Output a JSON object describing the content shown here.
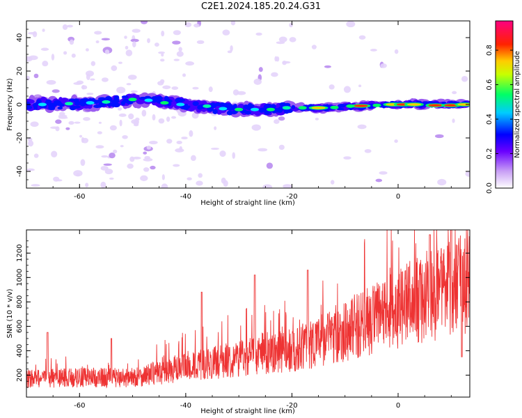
{
  "figure": {
    "title": "C2E1.2024.185.20.24.G31"
  },
  "chart_data": [
    {
      "type": "heatmap",
      "title": "",
      "xlabel": "Height of straight line (km)",
      "ylabel": "Frequency (Hz)",
      "xlim": [
        -70,
        13.5
      ],
      "ylim": [
        -50,
        50
      ],
      "xticks": [
        -60,
        -40,
        -20,
        0
      ],
      "yticks": [
        -40,
        -20,
        0,
        20,
        40
      ],
      "colorbar": {
        "label": "Normalized spectral amplitude",
        "range": [
          0,
          0.97
        ],
        "ticks": [
          0.0,
          0.2,
          0.4,
          0.6,
          0.8
        ],
        "colormap": [
          "#ffffff",
          "#8a2be2",
          "#0000ff",
          "#00ffff",
          "#00ff00",
          "#ffff00",
          "#ff0000",
          "#ff0080"
        ]
      },
      "ridge": [
        {
          "x": -70,
          "f": 0
        },
        {
          "x": -60,
          "f": 0.5
        },
        {
          "x": -50,
          "f": 2.5
        },
        {
          "x": -45,
          "f": 2
        },
        {
          "x": -40,
          "f": 0
        },
        {
          "x": -35,
          "f": -2
        },
        {
          "x": -30,
          "f": -3
        },
        {
          "x": -25,
          "f": -3
        },
        {
          "x": -20,
          "f": -2
        },
        {
          "x": -15,
          "f": -2
        },
        {
          "x": -10,
          "f": -1.5
        },
        {
          "x": -5,
          "f": -0.5
        },
        {
          "x": 0,
          "f": 0
        },
        {
          "x": 5,
          "f": 0
        },
        {
          "x": 10,
          "f": 0
        },
        {
          "x": 13,
          "f": 0
        }
      ]
    },
    {
      "type": "line",
      "title": "",
      "xlabel": "Height of straight line (km)",
      "ylabel": "SNR (10 * v/v)",
      "xlim": [
        -70,
        13.5
      ],
      "ylim": [
        20,
        1390
      ],
      "xticks": [
        -60,
        -40,
        -20,
        0
      ],
      "yticks": [
        200,
        400,
        600,
        800,
        1000,
        1200
      ],
      "color": "#ee3333",
      "trend": [
        {
          "x": -70,
          "y": 170
        },
        {
          "x": -60,
          "y": 180
        },
        {
          "x": -50,
          "y": 180
        },
        {
          "x": -45,
          "y": 220
        },
        {
          "x": -40,
          "y": 260
        },
        {
          "x": -35,
          "y": 300
        },
        {
          "x": -30,
          "y": 340
        },
        {
          "x": -25,
          "y": 380
        },
        {
          "x": -20,
          "y": 400
        },
        {
          "x": -15,
          "y": 480
        },
        {
          "x": -10,
          "y": 560
        },
        {
          "x": -5,
          "y": 650
        },
        {
          "x": 0,
          "y": 740
        },
        {
          "x": 5,
          "y": 840
        },
        {
          "x": 10,
          "y": 900
        },
        {
          "x": 13.5,
          "y": 1000
        }
      ],
      "spikes": [
        {
          "x": -66,
          "y": 550
        },
        {
          "x": -54,
          "y": 500
        },
        {
          "x": -37,
          "y": 880
        },
        {
          "x": -27,
          "y": 1020
        },
        {
          "x": -17,
          "y": 1060
        },
        {
          "x": 6,
          "y": 1350
        },
        {
          "x": 10,
          "y": 1390
        },
        {
          "x": 12,
          "y": 350
        }
      ]
    }
  ]
}
